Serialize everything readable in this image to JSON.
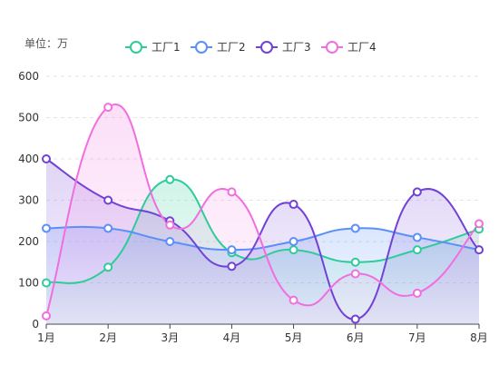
{
  "unit_label": "单位：万",
  "chart_data": {
    "type": "line",
    "smooth": true,
    "area": true,
    "categories": [
      "1月",
      "2月",
      "3月",
      "4月",
      "5月",
      "6月",
      "7月",
      "8月"
    ],
    "ylim": [
      0,
      600
    ],
    "yticks": [
      0,
      100,
      200,
      300,
      400,
      500,
      600
    ],
    "grid": "horizontal dashed",
    "legend_position": "top-center",
    "series": [
      {
        "name": "工厂1",
        "color": "#2ecc9a",
        "values": [
          100,
          138,
          350,
          173,
          180,
          150,
          180,
          230
        ]
      },
      {
        "name": "工厂2",
        "color": "#5b8ff9",
        "values": [
          232,
          232,
          200,
          180,
          200,
          232,
          210,
          180
        ]
      },
      {
        "name": "工厂3",
        "color": "#7241d6",
        "values": [
          400,
          300,
          250,
          140,
          290,
          12,
          320,
          180
        ]
      },
      {
        "name": "工厂4",
        "color": "#f06ee0",
        "values": [
          20,
          525,
          240,
          320,
          58,
          122,
          75,
          243
        ]
      }
    ]
  }
}
